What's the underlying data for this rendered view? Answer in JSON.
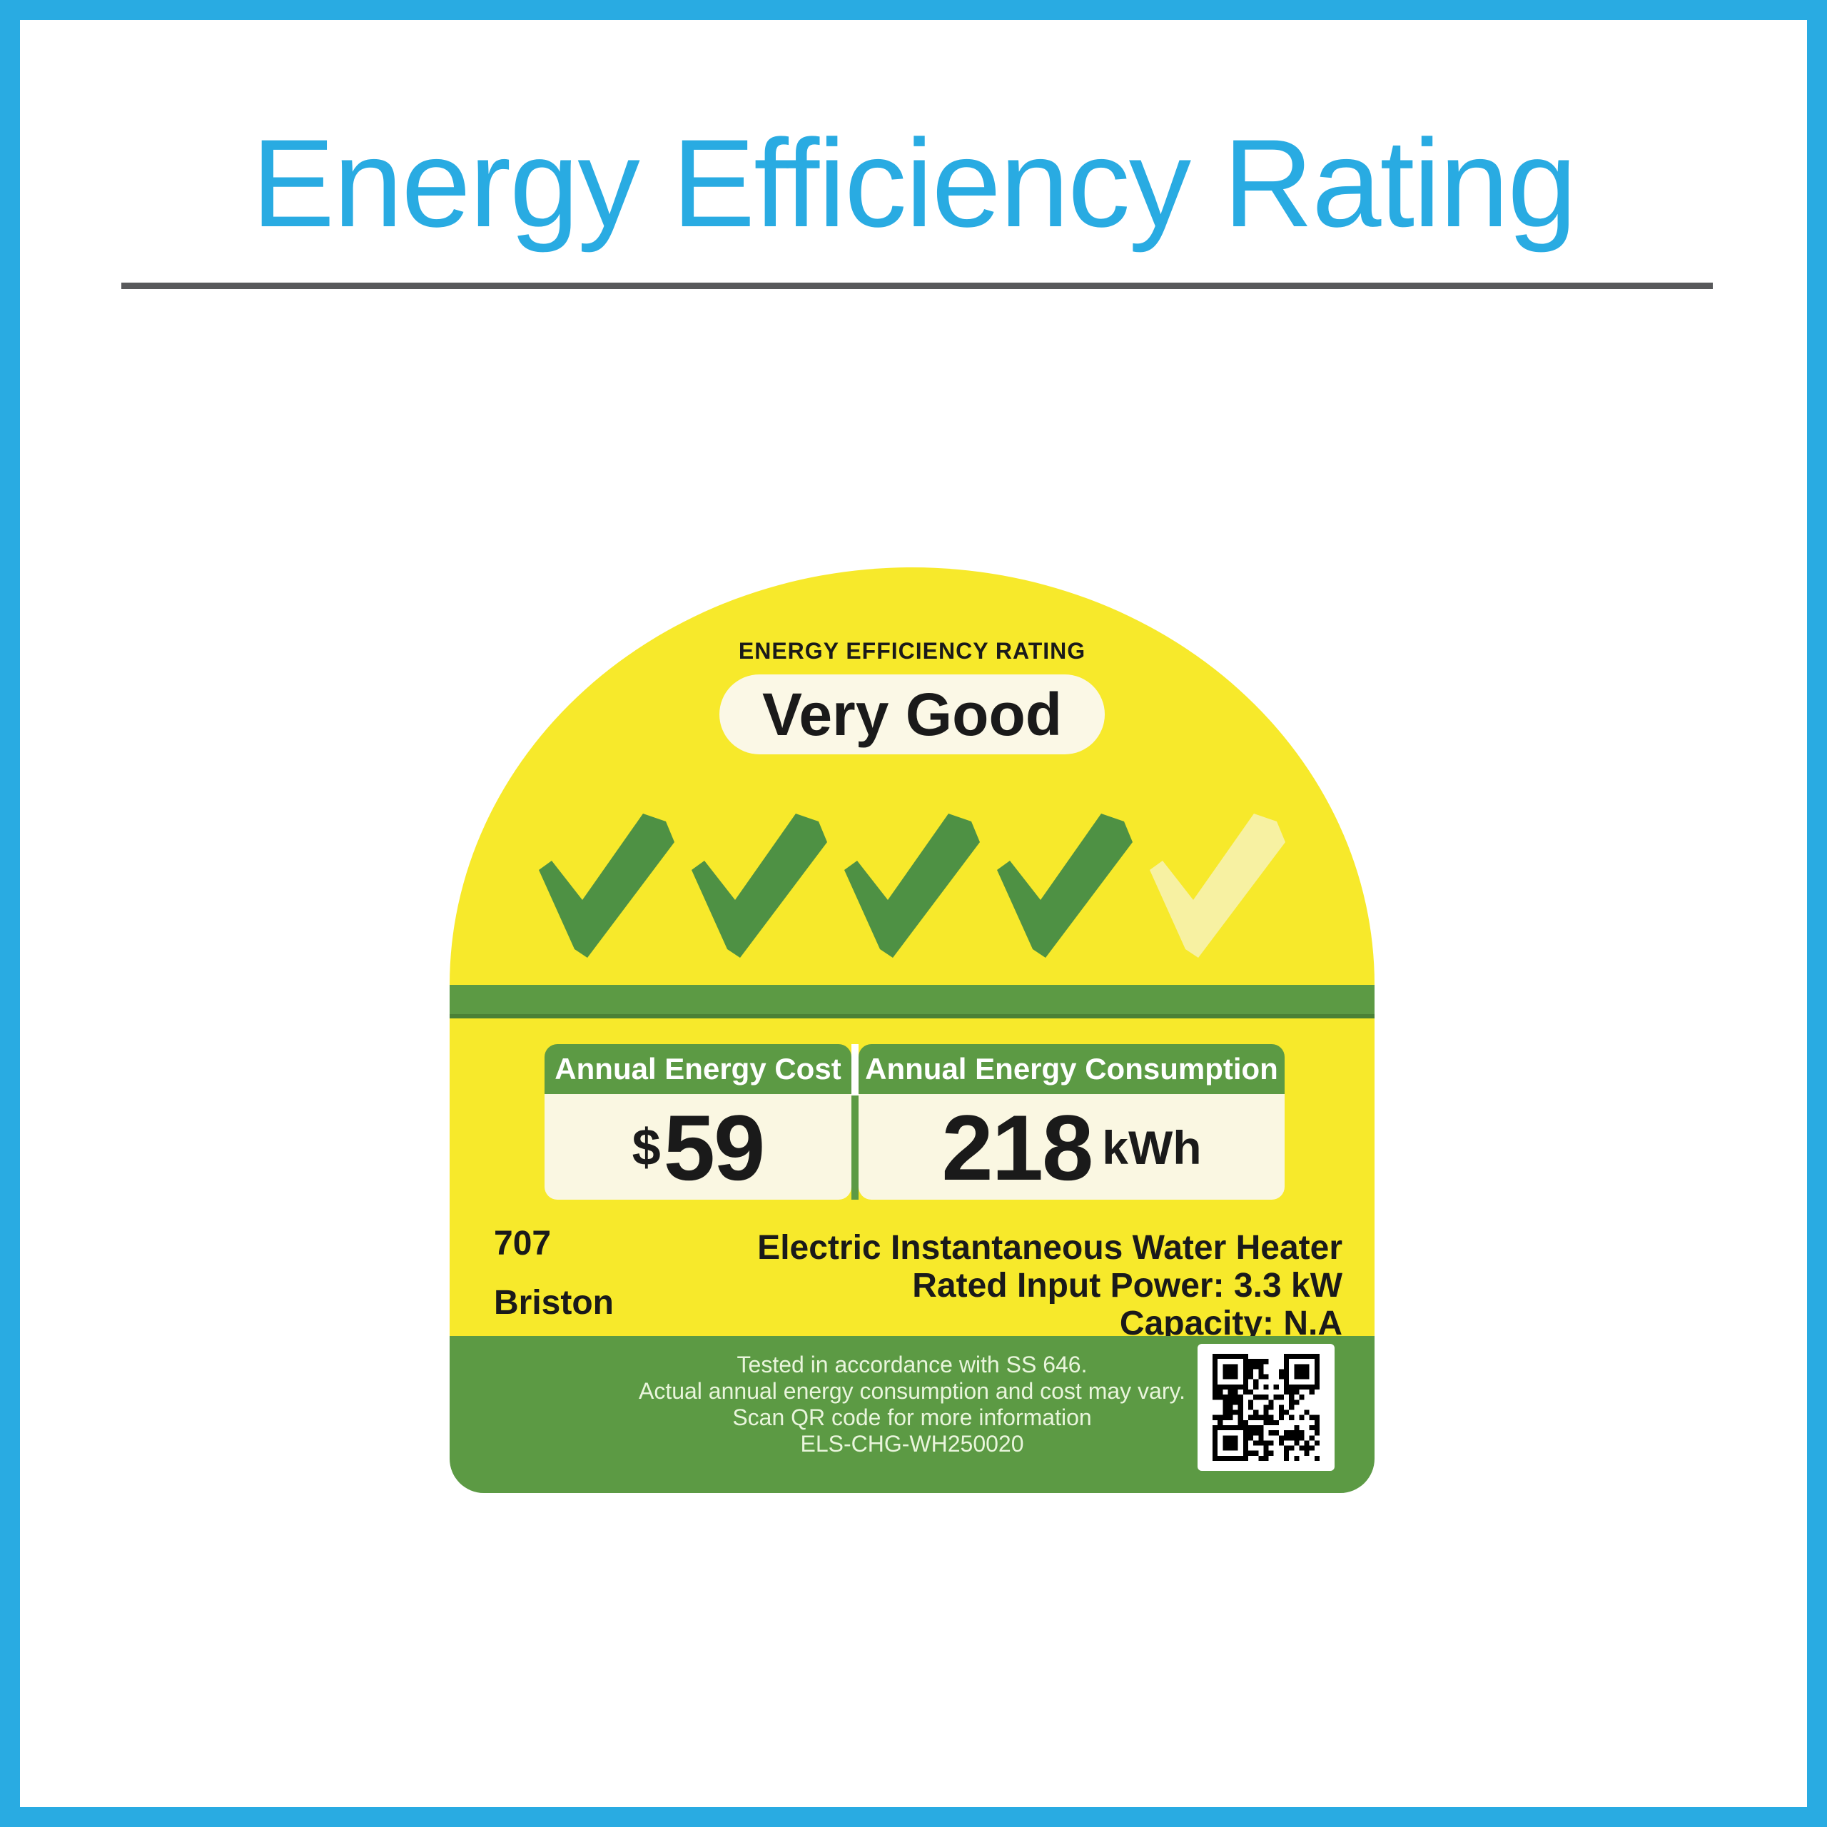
{
  "page": {
    "title": "Energy Efficiency Rating"
  },
  "colors": {
    "blue": "#29ABE2",
    "gray": "#58595B",
    "yellow": "#F7E92B",
    "green": "#5C9A44",
    "green-dark": "#4A8136",
    "check-green": "#4E9144",
    "check-pale": "#F7F1A2",
    "cream": "#FAF7E2",
    "pill": "#FBF8E6",
    "ink": "#1A1A1A",
    "footer-ink": "#E9F5DC"
  },
  "label": {
    "heading": "ENERGY EFFICIENCY RATING",
    "rating": {
      "text": "Very Good",
      "ticks_total": 5,
      "ticks_filled": 4
    },
    "stats": [
      {
        "header": "Annual Energy Cost",
        "currency": "$",
        "value": "59",
        "unit": ""
      },
      {
        "header": "Annual Energy Consumption",
        "currency": "",
        "value": "218",
        "unit": "kWh"
      }
    ],
    "product": {
      "model": "707",
      "brand": "Briston",
      "type": "Electric Instantaneous Water Heater",
      "rated_input_power": "Rated Input Power: 3.3 kW",
      "capacity": "Capacity: N.A"
    },
    "footer": {
      "lines": [
        "Tested in accordance with SS 646.",
        "Actual annual energy consumption and cost may vary.",
        "Scan QR code for more information",
        "ELS-CHG-WH250020"
      ]
    }
  }
}
